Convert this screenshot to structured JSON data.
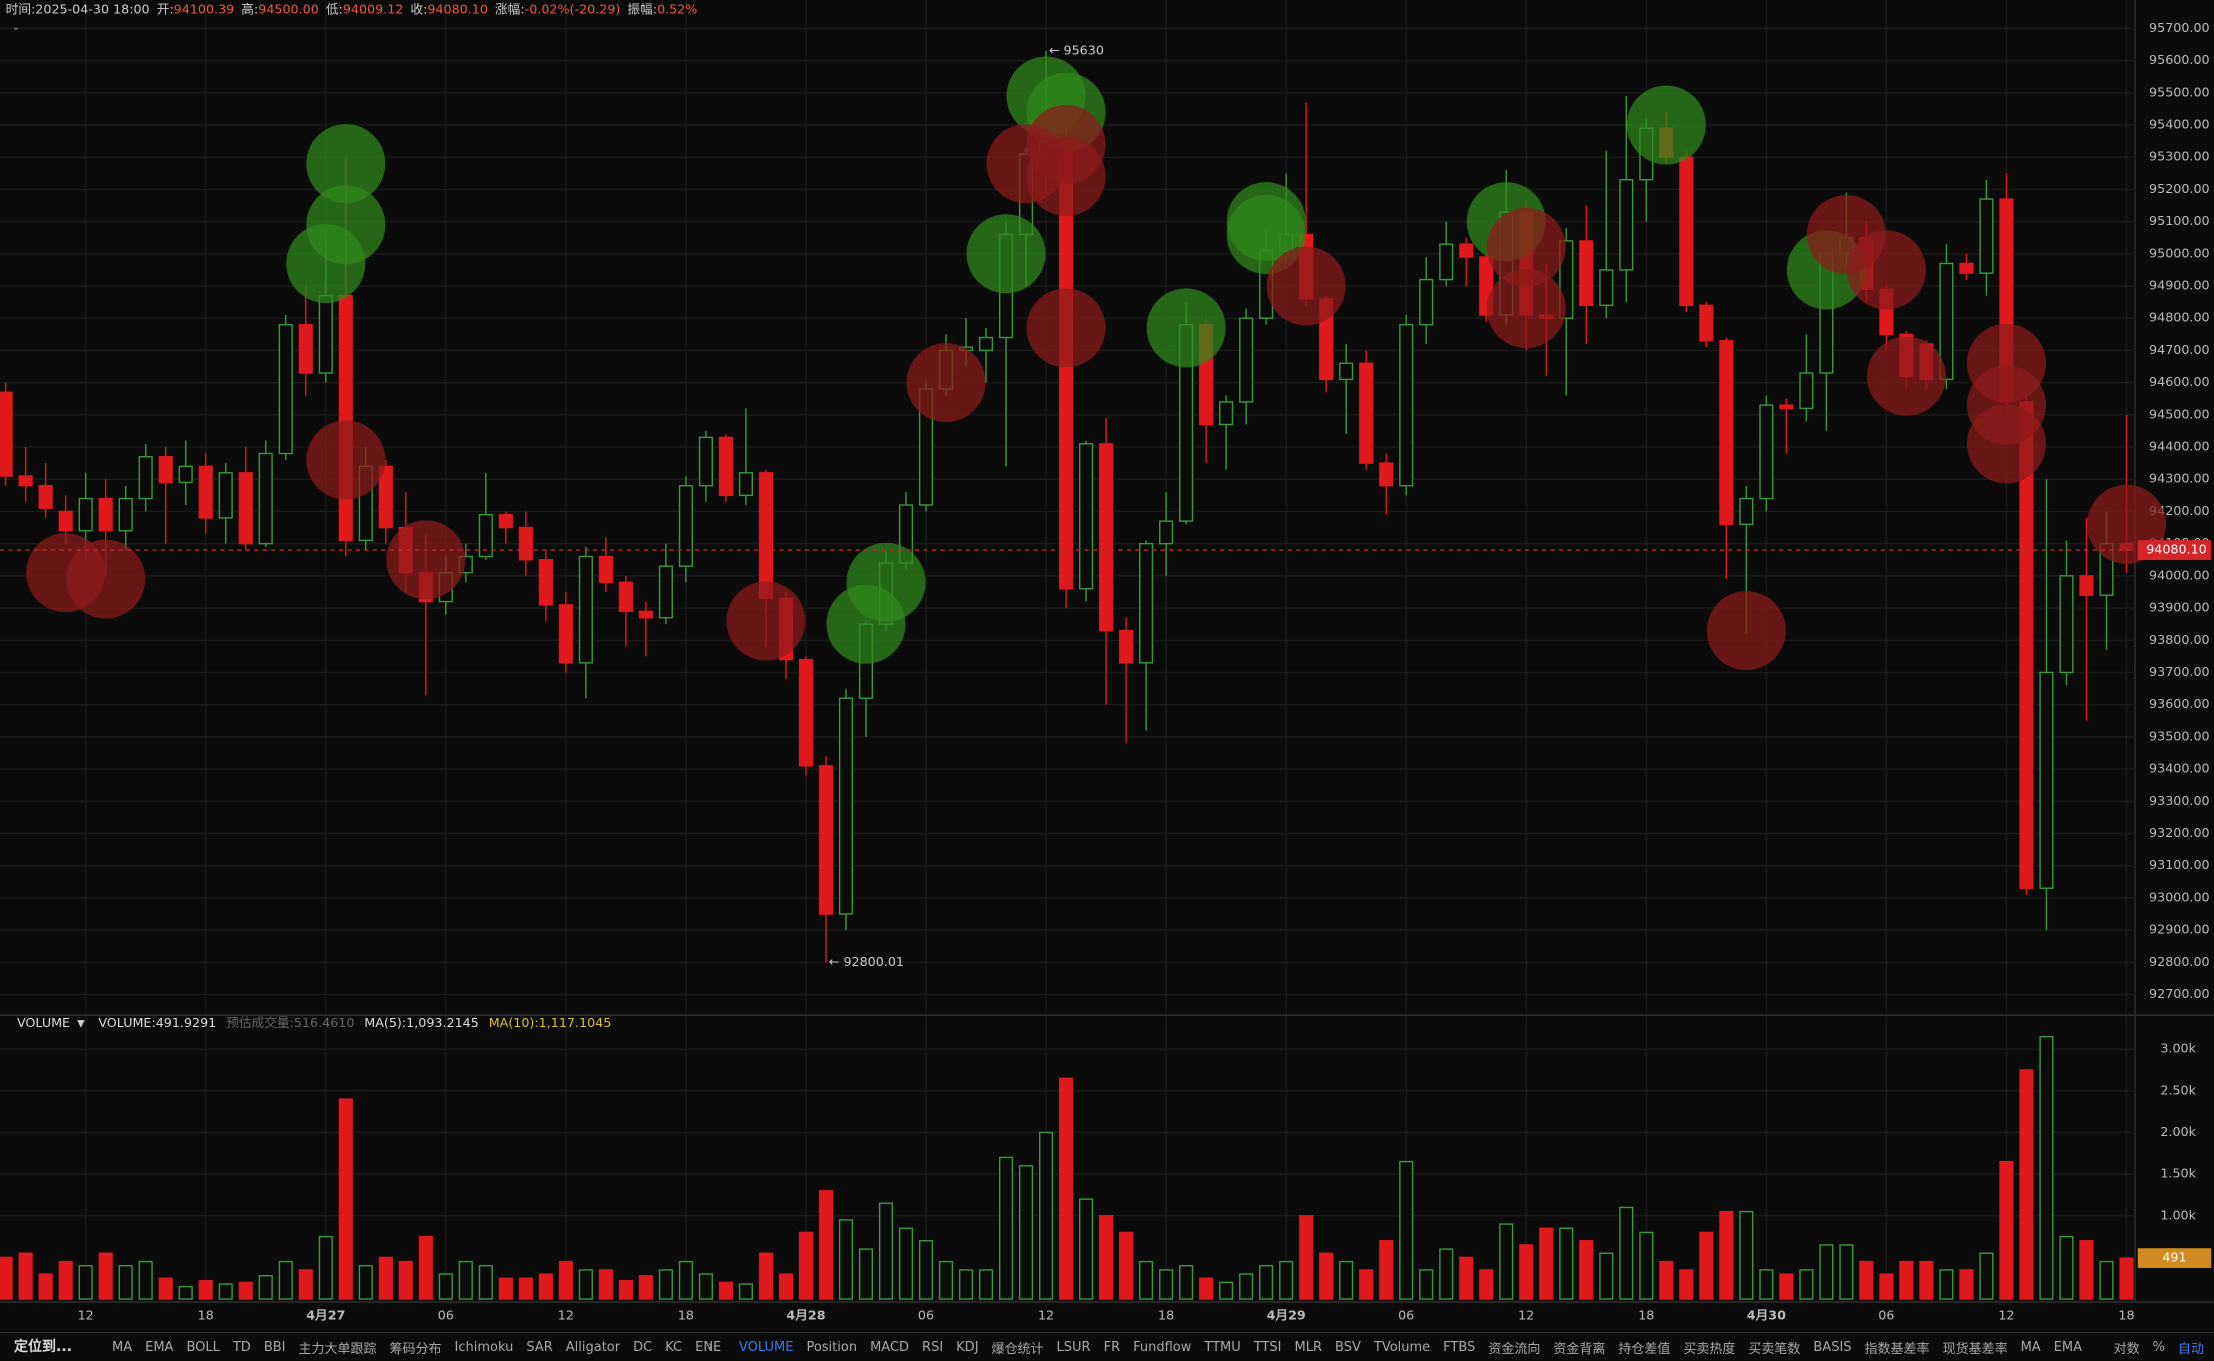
{
  "chart_data": {
    "type": "candlestick",
    "header": [
      {
        "label": "时间:",
        "value": "2025-04-30 18:00"
      },
      {
        "label": "开:",
        "value": "94100.39"
      },
      {
        "label": "高:",
        "value": "94500.00"
      },
      {
        "label": "低:",
        "value": "94009.12"
      },
      {
        "label": "收:",
        "value": "94080.10"
      },
      {
        "label": "涨幅:",
        "value": "-0.02%(-20.29)"
      },
      {
        "label": "振幅:",
        "value": "0.52%"
      }
    ],
    "up_color": "#3a9a3a",
    "down_color": "#e0191c",
    "buy_color": "#2f8a1c",
    "sell_color": "#8e1a1a",
    "grid": true,
    "categories": [
      null,
      null,
      null,
      null,
      "12",
      null,
      null,
      null,
      null,
      null,
      "18",
      null,
      null,
      null,
      null,
      null,
      "4月27",
      null,
      null,
      null,
      null,
      null,
      "06",
      null,
      null,
      null,
      null,
      null,
      "12",
      null,
      null,
      null,
      null,
      null,
      "18",
      null,
      null,
      null,
      null,
      null,
      "4月28",
      null,
      null,
      null,
      null,
      null,
      "06",
      null,
      null,
      null,
      null,
      null,
      "12",
      null,
      null,
      null,
      null,
      null,
      "18",
      null,
      null,
      null,
      null,
      null,
      "4月29",
      null,
      null,
      null,
      null,
      null,
      "06",
      null,
      null,
      null,
      null,
      null,
      "12",
      null,
      null,
      null,
      null,
      null,
      "18",
      null,
      null,
      null,
      null,
      null,
      "4月30",
      null,
      null,
      null,
      null,
      null,
      "06",
      null,
      null,
      null,
      null,
      null,
      "12",
      null,
      null,
      null,
      null,
      null,
      "18"
    ],
    "open": [
      94570,
      94310,
      94280,
      94200,
      94140,
      94240,
      94140,
      94240,
      94370,
      94290,
      94340,
      94180,
      94320,
      94100,
      94380,
      94780,
      94630,
      94870,
      94110,
      94340,
      94150,
      94010,
      93920,
      94010,
      94060,
      94190,
      94150,
      94050,
      93910,
      93730,
      94060,
      93980,
      93890,
      93870,
      94030,
      94280,
      94430,
      94250,
      94320,
      93930,
      93740,
      93410,
      92950,
      93620,
      93850,
      94040,
      94220,
      94580,
      94700,
      94700,
      94740,
      95060,
      95310,
      95350,
      93960,
      94410,
      93830,
      93730,
      94100,
      94170,
      94780,
      94470,
      94540,
      94800,
      95010,
      95060,
      94860,
      94610,
      94660,
      94350,
      94280,
      94780,
      94920,
      95030,
      94990,
      94810,
      95130,
      94810,
      94800,
      95040,
      94840,
      94950,
      95230,
      95390,
      95300,
      94840,
      94730,
      94160,
      94240,
      94530,
      94520,
      94630,
      95000,
      95050,
      94890,
      94750,
      94720,
      94610,
      94970,
      94940,
      95170,
      94540,
      93030,
      93700,
      94000,
      93940,
      94100.39
    ],
    "high": [
      94600,
      94400,
      94350,
      94250,
      94320,
      94300,
      94280,
      94410,
      94400,
      94420,
      94380,
      94350,
      94400,
      94420,
      94810,
      94900,
      95050,
      95300,
      94400,
      94360,
      94260,
      94130,
      94060,
      94100,
      94320,
      94200,
      94200,
      94080,
      93950,
      94090,
      94120,
      94000,
      93920,
      94100,
      94310,
      94450,
      94440,
      94520,
      94330,
      93950,
      93750,
      93440,
      93650,
      93860,
      94080,
      94260,
      94600,
      94750,
      94800,
      94770,
      95100,
      95330,
      95630,
      95450,
      94420,
      94490,
      93870,
      94110,
      94260,
      94850,
      94800,
      94560,
      94830,
      95080,
      95250,
      95470,
      94870,
      94720,
      94700,
      94380,
      94810,
      94990,
      95100,
      95050,
      95000,
      95260,
      95160,
      94970,
      95080,
      95150,
      95320,
      95490,
      95420,
      95440,
      95320,
      94850,
      94740,
      94280,
      94560,
      94550,
      94750,
      95010,
      95190,
      95100,
      94900,
      94760,
      94730,
      95030,
      95000,
      95230,
      95250,
      94560,
      94300,
      94110,
      94180,
      94200,
      94500
    ],
    "low": [
      94280,
      94230,
      94180,
      94100,
      94050,
      94000,
      94080,
      94200,
      94100,
      94220,
      94130,
      94100,
      94080,
      94090,
      94360,
      94560,
      94600,
      94060,
      94080,
      94100,
      93950,
      93630,
      93880,
      93980,
      94050,
      94100,
      94000,
      93860,
      93700,
      93620,
      93950,
      93780,
      93750,
      93850,
      93980,
      94230,
      94230,
      94220,
      93780,
      93680,
      93380,
      92800.01,
      92900,
      93500,
      93830,
      94020,
      94200,
      94560,
      94650,
      94600,
      94340,
      94900,
      95200,
      93900,
      93920,
      93600,
      93480,
      93520,
      94000,
      94160,
      94350,
      94330,
      94470,
      94780,
      94980,
      94840,
      94570,
      94440,
      94330,
      94190,
      94250,
      94720,
      94900,
      94900,
      94790,
      94780,
      94700,
      94620,
      94560,
      94720,
      94800,
      94850,
      95100,
      95280,
      94820,
      94710,
      93990,
      93820,
      94200,
      94380,
      94480,
      94450,
      94960,
      94850,
      94700,
      94580,
      94580,
      94580,
      94920,
      94870,
      94500,
      93010,
      92900,
      93660,
      93550,
      93770,
      94009.12
    ],
    "close": [
      94310,
      94280,
      94210,
      94140,
      94240,
      94140,
      94240,
      94370,
      94290,
      94340,
      94180,
      94320,
      94100,
      94380,
      94780,
      94630,
      94870,
      94110,
      94340,
      94150,
      94010,
      93920,
      94010,
      94060,
      94190,
      94150,
      94050,
      93910,
      93730,
      94060,
      93980,
      93890,
      93870,
      94030,
      94280,
      94430,
      94250,
      94320,
      93930,
      93740,
      93410,
      92950,
      93620,
      93850,
      94040,
      94220,
      94580,
      94700,
      94710,
      94740,
      95060,
      95310,
      95350,
      93960,
      94410,
      93830,
      93730,
      94100,
      94170,
      94780,
      94470,
      94540,
      94800,
      95010,
      95060,
      94860,
      94610,
      94660,
      94350,
      94280,
      94780,
      94920,
      95030,
      94990,
      94810,
      95130,
      94810,
      94800,
      95040,
      94840,
      94950,
      95230,
      95390,
      95300,
      94840,
      94730,
      94160,
      94240,
      94530,
      94520,
      94630,
      95000,
      95050,
      94890,
      94750,
      94620,
      94610,
      94970,
      94940,
      95170,
      94540,
      93030,
      93700,
      94000,
      93940,
      94100,
      94080.1
    ],
    "volume": [
      500,
      550,
      300,
      450,
      400,
      550,
      400,
      450,
      250,
      150,
      220,
      180,
      200,
      280,
      450,
      350,
      750,
      2400,
      400,
      500,
      450,
      750,
      300,
      450,
      400,
      250,
      250,
      300,
      450,
      350,
      350,
      220,
      280,
      350,
      450,
      300,
      200,
      180,
      550,
      300,
      800,
      1300,
      950,
      600,
      1150,
      850,
      700,
      450,
      350,
      350,
      1700,
      1600,
      2000,
      2650,
      1200,
      1000,
      800,
      450,
      350,
      400,
      250,
      200,
      300,
      400,
      450,
      1000,
      550,
      450,
      350,
      700,
      1650,
      350,
      600,
      500,
      350,
      900,
      650,
      850,
      850,
      700,
      550,
      1100,
      800,
      450,
      350,
      800,
      1050,
      1050,
      350,
      300,
      350,
      650,
      650,
      450,
      300,
      450,
      450,
      350,
      350,
      550,
      1650,
      2750,
      3150,
      750,
      700,
      450,
      491.9291
    ],
    "ylim": [
      92640,
      95788
    ],
    "yticks": [
      {
        "value": 92700,
        "label": "92700.00"
      },
      {
        "value": 92800,
        "label": "92800.00"
      },
      {
        "value": 92900,
        "label": "92900.00"
      },
      {
        "value": 93000,
        "label": "93000.00"
      },
      {
        "value": 93100,
        "label": "93100.00"
      },
      {
        "value": 93200,
        "label": "93200.00"
      },
      {
        "value": 93300,
        "label": "93300.00"
      },
      {
        "value": 93400,
        "label": "93400.00"
      },
      {
        "value": 93500,
        "label": "93500.00"
      },
      {
        "value": 93600,
        "label": "93600.00"
      },
      {
        "value": 93700,
        "label": "93700.00"
      },
      {
        "value": 93800,
        "label": "93800.00"
      },
      {
        "value": 93900,
        "label": "93900.00"
      },
      {
        "value": 94000,
        "label": "94000.00"
      },
      {
        "value": 94100,
        "label": "94100.00"
      },
      {
        "value": 94200,
        "label": "94200.00"
      },
      {
        "value": 94300,
        "label": "94300.00"
      },
      {
        "value": 94400,
        "label": "94400.00"
      },
      {
        "value": 94500,
        "label": "94500.00"
      },
      {
        "value": 94600,
        "label": "94600.00"
      },
      {
        "value": 94700,
        "label": "94700.00"
      },
      {
        "value": 94800,
        "label": "94800.00"
      },
      {
        "value": 94900,
        "label": "94900.00"
      },
      {
        "value": 95000,
        "label": "95000.00"
      },
      {
        "value": 95100,
        "label": "95100.00"
      },
      {
        "value": 95200,
        "label": "95200.00"
      },
      {
        "value": 95300,
        "label": "95300.00"
      },
      {
        "value": 95400,
        "label": "95400.00"
      },
      {
        "value": 95500,
        "label": "95500.00"
      },
      {
        "value": 95600,
        "label": "95600.00"
      },
      {
        "value": 95700,
        "label": "95700.00"
      }
    ],
    "last_price": {
      "value": 94080.1,
      "label": "94080.10"
    },
    "annotations": [
      {
        "label": "← 95630",
        "value": 95630,
        "index": 52
      },
      {
        "label": "← 92800.01",
        "value": 92800.01,
        "index": 41
      }
    ],
    "bubbles": [
      {
        "index": 3,
        "price": 94010,
        "side": "sell"
      },
      {
        "index": 5,
        "price": 93990,
        "side": "sell"
      },
      {
        "index": 17,
        "price": 95280,
        "side": "buy"
      },
      {
        "index": 17,
        "price": 95090,
        "side": "buy"
      },
      {
        "index": 16,
        "price": 94970,
        "side": "buy"
      },
      {
        "index": 17,
        "price": 94360,
        "side": "sell"
      },
      {
        "index": 21,
        "price": 94050,
        "side": "sell"
      },
      {
        "index": 38,
        "price": 93860,
        "side": "sell"
      },
      {
        "index": 43,
        "price": 93850,
        "side": "buy"
      },
      {
        "index": 44,
        "price": 93980,
        "side": "buy"
      },
      {
        "index": 47,
        "price": 94600,
        "side": "sell"
      },
      {
        "index": 50,
        "price": 95000,
        "side": "buy"
      },
      {
        "index": 52,
        "price": 95490,
        "side": "buy"
      },
      {
        "index": 53,
        "price": 95440,
        "side": "buy"
      },
      {
        "index": 51,
        "price": 95280,
        "side": "sell"
      },
      {
        "index": 53,
        "price": 95340,
        "side": "sell"
      },
      {
        "index": 53,
        "price": 95240,
        "side": "sell"
      },
      {
        "index": 53,
        "price": 94770,
        "side": "sell"
      },
      {
        "index": 59,
        "price": 94770,
        "side": "buy"
      },
      {
        "index": 63,
        "price": 95100,
        "side": "buy"
      },
      {
        "index": 63,
        "price": 95060,
        "side": "buy"
      },
      {
        "index": 65,
        "price": 94900,
        "side": "sell"
      },
      {
        "index": 75,
        "price": 95100,
        "side": "buy"
      },
      {
        "index": 76,
        "price": 95020,
        "side": "sell"
      },
      {
        "index": 76,
        "price": 94830,
        "side": "sell"
      },
      {
        "index": 83,
        "price": 95400,
        "side": "buy"
      },
      {
        "index": 87,
        "price": 93830,
        "side": "sell"
      },
      {
        "index": 91,
        "price": 94950,
        "side": "buy"
      },
      {
        "index": 92,
        "price": 95060,
        "side": "sell"
      },
      {
        "index": 94,
        "price": 94950,
        "side": "sell"
      },
      {
        "index": 95,
        "price": 94620,
        "side": "sell"
      },
      {
        "index": 100,
        "price": 94660,
        "side": "sell"
      },
      {
        "index": 100,
        "price": 94530,
        "side": "sell"
      },
      {
        "index": 100,
        "price": 94410,
        "side": "sell"
      },
      {
        "index": 106,
        "price": 94160,
        "side": "sell"
      }
    ],
    "volume_legend": [
      "VOLUME",
      "VOLUME:491.9291",
      "预估成交量:516.4610",
      "MA(5):1,093.2145",
      "MA(10):1,117.1045"
    ],
    "volume_ylim": [
      0,
      3390
    ],
    "volume_yticks": [
      {
        "value": 1000,
        "label": "1.00k"
      },
      {
        "value": 1500,
        "label": "1.50k"
      },
      {
        "value": 2000,
        "label": "2.00k"
      },
      {
        "value": 2500,
        "label": "2.50k"
      },
      {
        "value": 3000,
        "label": "3.00k"
      }
    ],
    "volume_last": {
      "value": 491.9291,
      "label": "491"
    }
  },
  "toolbar": {
    "locate": "定位到...",
    "main": [
      "MA",
      "EMA",
      "BOLL",
      "TD",
      "BBI",
      "主力大单跟踪",
      "筹码分布",
      "Ichimoku",
      "SAR",
      "Alligator",
      "DC",
      "KC",
      "ENE"
    ],
    "sub": [
      "VOLUME",
      "Position",
      "MACD",
      "RSI",
      "KDJ",
      "爆仓统计",
      "LSUR",
      "FR",
      "Fundflow",
      "TTMU",
      "TTSI",
      "MLR",
      "BSV",
      "TVolume",
      "FTBS",
      "资金流向",
      "资金背离",
      "持仓差值",
      "买卖热度",
      "买卖笔数",
      "BASIS",
      "指数基差率",
      "现货基差率",
      "MA",
      "EMA"
    ],
    "right": [
      "对数",
      "%",
      "自动"
    ]
  }
}
